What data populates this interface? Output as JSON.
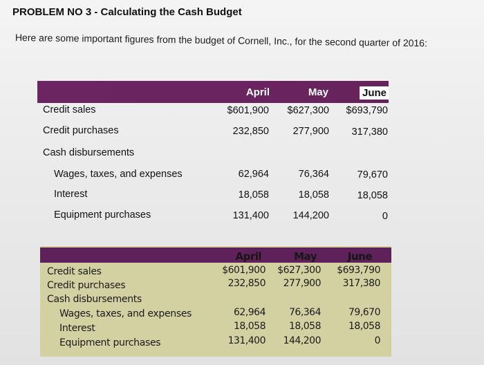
{
  "problem": {
    "title": "PROBLEM NO 3 - Calculating the Cash Budget",
    "intro": "Here are some important figures from the budget of Cornell, Inc., for the second quarter of 2016:"
  },
  "table": {
    "months": [
      "April",
      "May",
      "June"
    ],
    "rows": [
      {
        "label": "Credit sales",
        "values": [
          "$601,900",
          "$627,300",
          "$693,790"
        ]
      },
      {
        "label": "Credit purchases",
        "values": [
          "232,850",
          "277,900",
          "317,380"
        ]
      },
      {
        "label": "Cash disbursements",
        "values": [
          "",
          "",
          ""
        ]
      },
      {
        "label": "Wages, taxes, and expenses",
        "values": [
          "62,964",
          "76,364",
          "79,670"
        ]
      },
      {
        "label": "Interest",
        "values": [
          "18,058",
          "18,058",
          "18,058"
        ]
      },
      {
        "label": "Equipment purchases",
        "values": [
          "131,400",
          "144,200",
          "0"
        ]
      }
    ]
  },
  "scanned_table": {
    "months": [
      "April",
      "May",
      "June"
    ],
    "rows": [
      {
        "label": "Credit sales",
        "values": [
          "$601,900",
          "$627,300",
          "$693,790"
        ]
      },
      {
        "label": "Credit purchases",
        "values": [
          "232,850",
          "277,900",
          "317,380"
        ]
      },
      {
        "label": "Cash disbursements",
        "values": [
          "",
          "",
          ""
        ]
      },
      {
        "label": "Wages, taxes, and expenses",
        "values": [
          "62,964",
          "76,364",
          "79,670"
        ]
      },
      {
        "label": "Interest",
        "values": [
          "18,058",
          "18,058",
          "18,058"
        ]
      },
      {
        "label": "Equipment purchases",
        "values": [
          "131,400",
          "144,200",
          "0"
        ]
      }
    ]
  }
}
